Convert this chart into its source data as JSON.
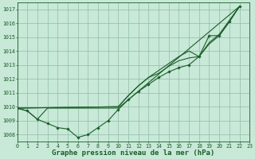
{
  "background_color": "#c8e8d8",
  "grid_color": "#90bca8",
  "line_color": "#1a5e28",
  "xlabel": "Graphe pression niveau de la mer (hPa)",
  "xlabel_fontsize": 6.5,
  "xlim": [
    0,
    23
  ],
  "ylim": [
    1007.5,
    1017.5
  ],
  "yticks": [
    1008,
    1009,
    1010,
    1011,
    1012,
    1013,
    1014,
    1015,
    1016,
    1017
  ],
  "xticks": [
    0,
    1,
    2,
    3,
    4,
    5,
    6,
    7,
    8,
    9,
    10,
    11,
    12,
    13,
    14,
    15,
    16,
    17,
    18,
    19,
    20,
    21,
    22,
    23
  ],
  "series_marked_x": [
    0,
    1,
    2,
    3,
    4,
    5,
    6,
    7,
    8,
    9,
    10,
    11,
    12,
    13,
    14,
    15,
    16,
    17,
    18,
    19,
    20,
    21,
    22
  ],
  "series_marked_y": [
    1009.9,
    1009.7,
    1009.1,
    1008.8,
    1008.5,
    1008.4,
    1007.8,
    1008.0,
    1008.5,
    1009.0,
    1009.8,
    1010.5,
    1011.1,
    1011.6,
    1012.1,
    1012.5,
    1012.8,
    1013.0,
    1013.6,
    1015.1,
    1015.1,
    1016.1,
    1017.2
  ],
  "series_flat_x": [
    0,
    1,
    2,
    3,
    10,
    22
  ],
  "series_flat_y": [
    1009.9,
    1009.7,
    1009.1,
    1009.9,
    1009.9,
    1017.2
  ],
  "series_upper_x": [
    0,
    10,
    11,
    12,
    13,
    14,
    15,
    16,
    17,
    18,
    19,
    20,
    21,
    22
  ],
  "series_upper_y": [
    1009.9,
    1010.0,
    1010.8,
    1011.5,
    1012.1,
    1012.6,
    1013.1,
    1013.6,
    1014.0,
    1013.6,
    1014.6,
    1015.2,
    1016.2,
    1017.2
  ],
  "series_mid_x": [
    0,
    10,
    11,
    12,
    13,
    14,
    15,
    16,
    17,
    18,
    19,
    20,
    21,
    22
  ],
  "series_mid_y": [
    1009.9,
    1010.0,
    1010.8,
    1011.5,
    1012.1,
    1012.4,
    1012.9,
    1013.3,
    1013.5,
    1013.6,
    1014.5,
    1015.1,
    1016.1,
    1017.2
  ]
}
